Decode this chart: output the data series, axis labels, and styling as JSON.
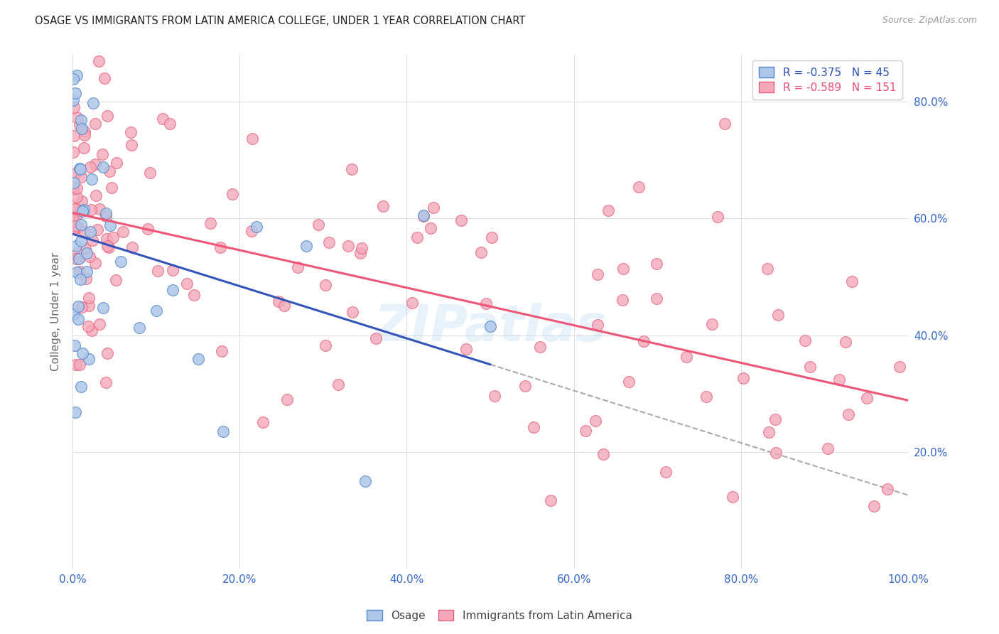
{
  "title": "OSAGE VS IMMIGRANTS FROM LATIN AMERICA COLLEGE, UNDER 1 YEAR CORRELATION CHART",
  "source": "Source: ZipAtlas.com",
  "ylabel": "College, Under 1 year",
  "legend_label_1": "Osage",
  "legend_label_2": "Immigrants from Latin America",
  "R1": -0.375,
  "N1": 45,
  "R2": -0.589,
  "N2": 151,
  "color_osage_fill": "#adc6e8",
  "color_osage_edge": "#5588cc",
  "color_latin_fill": "#f4a8ba",
  "color_latin_edge": "#e8607a",
  "color_osage_line": "#3355bb",
  "color_latin_line": "#ee5577",
  "color_dashed": "#aaaaaa",
  "xlim": [
    0.0,
    1.0
  ],
  "ylim": [
    0.0,
    0.88
  ],
  "background_color": "#ffffff",
  "watermark": "ZIPatlas",
  "grid_color": "#dddddd",
  "title_color": "#222222",
  "source_color": "#999999",
  "tick_color": "#3366cc",
  "ylabel_color": "#666666"
}
